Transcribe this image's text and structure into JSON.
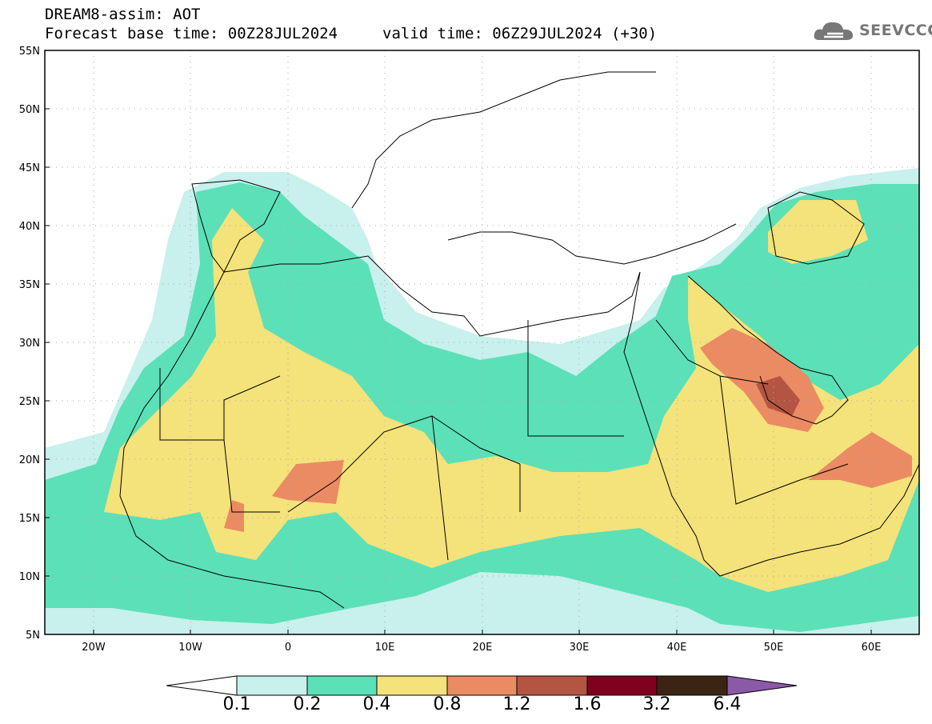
{
  "header": {
    "title": "DREAM8-assim: AOT",
    "base_time": "Forecast base time: 00Z28JUL2024",
    "valid_time": "valid time: 06Z29JUL2024 (+30)"
  },
  "logo": {
    "text": "SEEVCCC",
    "icon": "cloud-icon"
  },
  "axes": {
    "lat_labels": [
      "55N",
      "50N",
      "45N",
      "40N",
      "35N",
      "30N",
      "25N",
      "20N",
      "15N",
      "10N",
      "5N"
    ],
    "lon_labels": [
      "20W",
      "10W",
      "0",
      "10E",
      "20E",
      "30E",
      "40E",
      "50E",
      "60E"
    ]
  },
  "colorbar": {
    "labels": [
      "0.1",
      "0.2",
      "0.4",
      "0.8",
      "1.2",
      "1.6",
      "3.2",
      "6.4"
    ],
    "colors": [
      "#c8f0ec",
      "#5ce0b8",
      "#f4e27a",
      "#ea8b64",
      "#b45543",
      "#800020",
      "#3c2414",
      "#8a5aa8"
    ]
  }
}
